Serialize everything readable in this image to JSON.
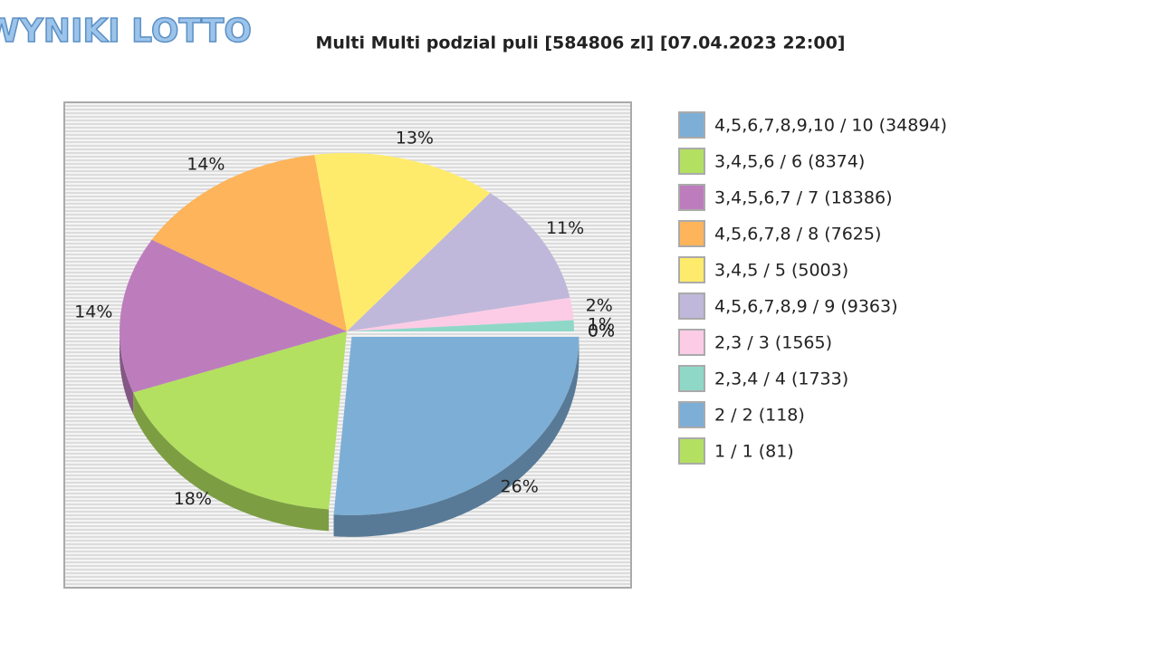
{
  "logo": "WYNIKI LOTTO",
  "chart_data": {
    "type": "pie",
    "title": "Multi Multi podzial puli [584806 zl] [07.04.2023 22:00]",
    "categories": [
      "4,5,6,7,8,9,10 / 10 (34894)",
      "3,4,5,6 / 6 (8374)",
      "3,4,5,6,7 / 7 (18386)",
      "4,5,6,7,8 / 8 (7625)",
      "3,4,5 / 5 (5003)",
      "4,5,6,7,8,9 / 9 (9363)",
      "2,3 / 3 (1565)",
      "2,3,4 / 4 (1733)",
      "2 / 2 (118)",
      "1 / 1 (81)"
    ],
    "values": [
      26,
      18,
      14,
      14,
      13,
      11,
      2,
      1,
      0,
      0
    ],
    "value_labels": [
      "26%",
      "18%",
      "14%",
      "14%",
      "13%",
      "11%",
      "2%",
      "1%",
      "0%",
      "0%"
    ],
    "colors": [
      "#7daed6",
      "#b3e060",
      "#bd7dbd",
      "#fdb45a",
      "#ffeb6b",
      "#bfb8da",
      "#fcccE6",
      "#8fd8c8",
      "#7daed6",
      "#b3e060"
    ],
    "legend": "right"
  }
}
